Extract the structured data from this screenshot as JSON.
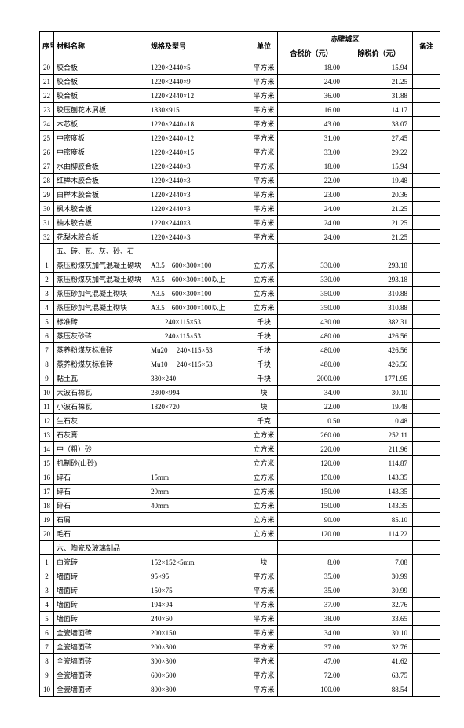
{
  "headers": {
    "seq": "序号",
    "name": "材料名称",
    "spec": "规格及型号",
    "unit": "单位",
    "region": "赤壁城区",
    "price_incl": "含税价（元）",
    "price_excl": "除税价（元）",
    "note": "备注"
  },
  "rows": [
    {
      "idx": "20",
      "name": "胶合板",
      "spec": "1220×2440×5",
      "unit": "平方米",
      "p1": "18.00",
      "p2": "15.94"
    },
    {
      "idx": "21",
      "name": "胶合板",
      "spec": "1220×2440×9",
      "unit": "平方米",
      "p1": "24.00",
      "p2": "21.25"
    },
    {
      "idx": "22",
      "name": "胶合板",
      "spec": "1220×2440×12",
      "unit": "平方米",
      "p1": "36.00",
      "p2": "31.88"
    },
    {
      "idx": "23",
      "name": "胶压刨花木屑板",
      "spec": "1830×915",
      "unit": "平方米",
      "p1": "16.00",
      "p2": "14.17"
    },
    {
      "idx": "24",
      "name": "木芯板",
      "spec": "1220×2440×18",
      "unit": "平方米",
      "p1": "43.00",
      "p2": "38.07"
    },
    {
      "idx": "25",
      "name": "中密度板",
      "spec": "1220×2440×12",
      "unit": "平方米",
      "p1": "31.00",
      "p2": "27.45"
    },
    {
      "idx": "26",
      "name": "中密度板",
      "spec": "1220×2440×15",
      "unit": "平方米",
      "p1": "33.00",
      "p2": "29.22"
    },
    {
      "idx": "27",
      "name": "水曲柳胶合板",
      "spec": "1220×2440×3",
      "unit": "平方米",
      "p1": "18.00",
      "p2": "15.94"
    },
    {
      "idx": "28",
      "name": "红榉木胶合板",
      "spec": "1220×2440×3",
      "unit": "平方米",
      "p1": "22.00",
      "p2": "19.48"
    },
    {
      "idx": "29",
      "name": "白榉木胶合板",
      "spec": "1220×2440×3",
      "unit": "平方米",
      "p1": "23.00",
      "p2": "20.36"
    },
    {
      "idx": "30",
      "name": "枫木胶合板",
      "spec": "1220×2440×3",
      "unit": "平方米",
      "p1": "24.00",
      "p2": "21.25"
    },
    {
      "idx": "31",
      "name": "柚木胶合板",
      "spec": "1220×2440×3",
      "unit": "平方米",
      "p1": "24.00",
      "p2": "21.25"
    },
    {
      "idx": "32",
      "name": "花梨木胶合板",
      "spec": "1220×2440×3",
      "unit": "平方米",
      "p1": "24.00",
      "p2": "21.25"
    },
    {
      "idx": "",
      "name": "五、砖、瓦、灰、砂、石",
      "spec": "",
      "unit": "",
      "p1": "",
      "p2": "",
      "section": true
    },
    {
      "idx": "1",
      "name": "蒸压粉煤灰加气混凝土砌块",
      "spec": "A3.5　600×300×100",
      "unit": "立方米",
      "p1": "330.00",
      "p2": "293.18"
    },
    {
      "idx": "2",
      "name": "蒸压粉煤灰加气混凝土砌块",
      "spec": "A3.5　600×300×100以上",
      "unit": "立方米",
      "p1": "330.00",
      "p2": "293.18"
    },
    {
      "idx": "3",
      "name": "蒸压砂加气混凝土砌块",
      "spec": "A3.5　600×300×100",
      "unit": "立方米",
      "p1": "350.00",
      "p2": "310.88"
    },
    {
      "idx": "4",
      "name": "蒸压砂加气混凝土砌块",
      "spec": "A3.5　600×300×100以上",
      "unit": "立方米",
      "p1": "350.00",
      "p2": "310.88"
    },
    {
      "idx": "5",
      "name": "标准砖",
      "spec": "　　240×115×53",
      "unit": "千块",
      "p1": "430.00",
      "p2": "382.31"
    },
    {
      "idx": "6",
      "name": "蒸压灰砂砖",
      "spec": "　　240×115×53",
      "unit": "千块",
      "p1": "480.00",
      "p2": "426.56"
    },
    {
      "idx": "7",
      "name": "蒸养粉煤灰标准砖",
      "spec": "Mu20　 240×115×53",
      "unit": "千块",
      "p1": "480.00",
      "p2": "426.56"
    },
    {
      "idx": "8",
      "name": "蒸养粉煤灰标准砖",
      "spec": "Mu10　 240×115×53",
      "unit": "千块",
      "p1": "480.00",
      "p2": "426.56"
    },
    {
      "idx": "9",
      "name": "黏土瓦",
      "spec": "380×240",
      "unit": "千块",
      "p1": "2000.00",
      "p2": "1771.95"
    },
    {
      "idx": "10",
      "name": "大波石棉瓦",
      "spec": "2800×994",
      "unit": "块",
      "p1": "34.00",
      "p2": "30.10"
    },
    {
      "idx": "11",
      "name": "小波石棉瓦",
      "spec": "1820×720",
      "unit": "块",
      "p1": "22.00",
      "p2": "19.48"
    },
    {
      "idx": "12",
      "name": "生石灰",
      "spec": "",
      "unit": "千克",
      "p1": "0.50",
      "p2": "0.48"
    },
    {
      "idx": "13",
      "name": "石灰膏",
      "spec": "",
      "unit": "立方米",
      "p1": "260.00",
      "p2": "252.11"
    },
    {
      "idx": "14",
      "name": "中（粗）砂",
      "spec": "",
      "unit": "立方米",
      "p1": "220.00",
      "p2": "211.96"
    },
    {
      "idx": "15",
      "name": "机制砂(山砂)",
      "spec": "",
      "unit": "立方米",
      "p1": "120.00",
      "p2": "114.87"
    },
    {
      "idx": "16",
      "name": "碎石",
      "spec": "15mm",
      "unit": "立方米",
      "p1": "150.00",
      "p2": "143.35"
    },
    {
      "idx": "17",
      "name": "碎石",
      "spec": "20mm",
      "unit": "立方米",
      "p1": "150.00",
      "p2": "143.35"
    },
    {
      "idx": "18",
      "name": "碎石",
      "spec": "40mm",
      "unit": "立方米",
      "p1": "150.00",
      "p2": "143.35"
    },
    {
      "idx": "19",
      "name": "石屑",
      "spec": "",
      "unit": "立方米",
      "p1": "90.00",
      "p2": "85.10"
    },
    {
      "idx": "20",
      "name": "毛石",
      "spec": "",
      "unit": "立方米",
      "p1": "120.00",
      "p2": "114.22"
    },
    {
      "idx": "",
      "name": "六、陶瓷及玻璃制品",
      "spec": "",
      "unit": "",
      "p1": "",
      "p2": "",
      "section": true
    },
    {
      "idx": "1",
      "name": "白瓷砖",
      "spec": "152×152×5mm",
      "unit": "块",
      "p1": "8.00",
      "p2": "7.08"
    },
    {
      "idx": "2",
      "name": "墙面砖",
      "spec": "95×95",
      "unit": "平方米",
      "p1": "35.00",
      "p2": "30.99"
    },
    {
      "idx": "3",
      "name": "墙面砖",
      "spec": "150×75",
      "unit": "平方米",
      "p1": "35.00",
      "p2": "30.99"
    },
    {
      "idx": "4",
      "name": "墙面砖",
      "spec": "194×94",
      "unit": "平方米",
      "p1": "37.00",
      "p2": "32.76"
    },
    {
      "idx": "5",
      "name": "墙面砖",
      "spec": "240×60",
      "unit": "平方米",
      "p1": "38.00",
      "p2": "33.65"
    },
    {
      "idx": "6",
      "name": "全瓷墙面砖",
      "spec": "200×150",
      "unit": "平方米",
      "p1": "34.00",
      "p2": "30.10"
    },
    {
      "idx": "7",
      "name": "全瓷墙面砖",
      "spec": "200×300",
      "unit": "平方米",
      "p1": "37.00",
      "p2": "32.76"
    },
    {
      "idx": "8",
      "name": "全瓷墙面砖",
      "spec": "300×300",
      "unit": "平方米",
      "p1": "47.00",
      "p2": "41.62"
    },
    {
      "idx": "9",
      "name": "全瓷墙面砖",
      "spec": "600×600",
      "unit": "平方米",
      "p1": "72.00",
      "p2": "63.75"
    },
    {
      "idx": "10",
      "name": "全瓷墙面砖",
      "spec": "800×800",
      "unit": "平方米",
      "p1": "100.00",
      "p2": "88.54"
    }
  ]
}
